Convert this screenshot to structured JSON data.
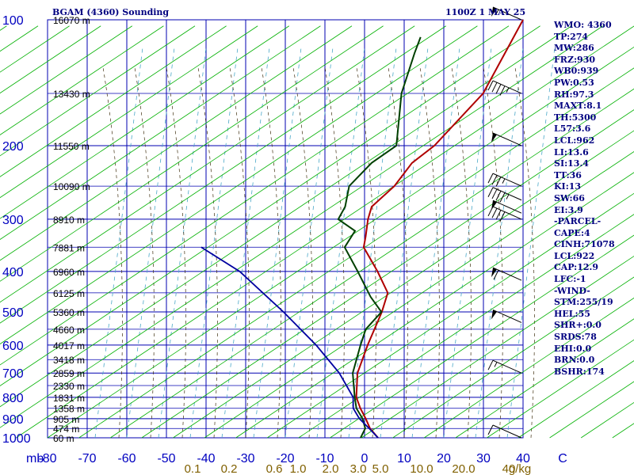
{
  "header": {
    "station": "BGAM (4360) Sounding",
    "time": "1100Z  1 MAY 25"
  },
  "indices": [
    "WMO: 4360",
    "TP:274",
    "MW:286",
    "FRZ:930",
    "WB0:939",
    "PW:0.53",
    "RH:97.3",
    "MAXT:8.1",
    "TH:5300",
    "L57:3.6",
    "LCL:962",
    "LI:13.6",
    "SI:13.4",
    "TT:36",
    "KI:13",
    "SW:66",
    "EI:3.9",
    "-PARCEL-",
    "CAPE:4",
    "CINH:71078",
    "LCL:922",
    "CAP:12.9",
    "LFC:-1",
    "-WIND-",
    "STM:255/19",
    "HEL:55",
    "SHR+:0.0",
    "SRDS:78",
    "EHI:0.0",
    "BRN:0.0",
    "BSHR:174"
  ],
  "chart_data": {
    "type": "line",
    "title": "BGAM (4360) Sounding",
    "xlabel": "",
    "ylabel": "mb",
    "xlim": [
      -80,
      0
    ],
    "ylim": [
      1000,
      100
    ],
    "x_ticks": [
      "-80",
      "-70",
      "-60",
      "-50",
      "-40",
      "-30",
      "-20",
      "-10",
      "0",
      "10",
      "20",
      "30",
      "40",
      "C"
    ],
    "y_ticks": [
      {
        "p": 100,
        "label": "100"
      },
      {
        "p": 200,
        "label": "200"
      },
      {
        "p": 300,
        "label": "300"
      },
      {
        "p": 400,
        "label": "400"
      },
      {
        "p": 500,
        "label": "500"
      },
      {
        "p": 600,
        "label": "600"
      },
      {
        "p": 700,
        "label": "700"
      },
      {
        "p": 800,
        "label": "800"
      },
      {
        "p": 900,
        "label": "900"
      },
      {
        "p": 1000,
        "label": "1000"
      }
    ],
    "y_unit_label": "mb",
    "mixing_ratio_labels": [
      "0.1",
      "0.2",
      "0.6",
      "1.0",
      "2.0",
      "3.0",
      "5.0",
      "10.0",
      "20.0",
      "40"
    ],
    "mixing_ratio_unit": "g/kg",
    "heights": [
      {
        "p": 100,
        "label": "16070 m"
      },
      {
        "p": 150,
        "label": "13430 m"
      },
      {
        "p": 200,
        "label": "11550 m"
      },
      {
        "p": 250,
        "label": "10090 m"
      },
      {
        "p": 300,
        "label": "8910 m"
      },
      {
        "p": 350,
        "label": "7881 m"
      },
      {
        "p": 400,
        "label": "6960 m"
      },
      {
        "p": 450,
        "label": "6125 m"
      },
      {
        "p": 500,
        "label": "5360 m"
      },
      {
        "p": 550,
        "label": "4660 m"
      },
      {
        "p": 600,
        "label": "4017 m"
      },
      {
        "p": 650,
        "label": "3418 m"
      },
      {
        "p": 700,
        "label": "2859 m"
      },
      {
        "p": 750,
        "label": "2330 m"
      },
      {
        "p": 800,
        "label": "1831 m"
      },
      {
        "p": 850,
        "label": "1358 m"
      },
      {
        "p": 900,
        "label": "905 m"
      },
      {
        "p": 950,
        "label": "474 m"
      },
      {
        "p": 1000,
        "label": "60 m"
      }
    ],
    "series": [
      {
        "role": "temperature",
        "color": "#b00000",
        "points": [
          {
            "p": 1000,
            "t": 3.4
          },
          {
            "p": 950,
            "t": -0.8
          },
          {
            "p": 900,
            "t": -4.2
          },
          {
            "p": 850,
            "t": -8.0
          },
          {
            "p": 800,
            "t": -11.6
          },
          {
            "p": 700,
            "t": -17.0
          },
          {
            "p": 600,
            "t": -21.0
          },
          {
            "p": 500,
            "t": -25.2
          },
          {
            "p": 450,
            "t": -28.2
          },
          {
            "p": 400,
            "t": -35.8
          },
          {
            "p": 350,
            "t": -45.0
          },
          {
            "p": 330,
            "t": -47.0
          },
          {
            "p": 300,
            "t": -50.5
          },
          {
            "p": 280,
            "t": -52.5
          },
          {
            "p": 250,
            "t": -51.6
          },
          {
            "p": 220,
            "t": -52.6
          },
          {
            "p": 200,
            "t": -51.0
          },
          {
            "p": 150,
            "t": -51.0
          },
          {
            "p": 100,
            "t": -53.4
          }
        ]
      },
      {
        "role": "dewpoint",
        "color": "#004000",
        "points": [
          {
            "p": 1000,
            "t": -1.0
          },
          {
            "p": 950,
            "t": -2.0
          },
          {
            "p": 900,
            "t": -5.0
          },
          {
            "p": 850,
            "t": -9.0
          },
          {
            "p": 800,
            "t": -12.0
          },
          {
            "p": 700,
            "t": -18.2
          },
          {
            "p": 600,
            "t": -22.8
          },
          {
            "p": 550,
            "t": -25.2
          },
          {
            "p": 500,
            "t": -25.3
          },
          {
            "p": 460,
            "t": -31.6
          },
          {
            "p": 400,
            "t": -40.8
          },
          {
            "p": 350,
            "t": -49.8
          },
          {
            "p": 320,
            "t": -51.0
          },
          {
            "p": 300,
            "t": -58.0
          },
          {
            "p": 280,
            "t": -59.2
          },
          {
            "p": 250,
            "t": -63.0
          },
          {
            "p": 220,
            "t": -62.8
          },
          {
            "p": 200,
            "t": -60.6
          },
          {
            "p": 150,
            "t": -71.6
          },
          {
            "p": 120,
            "t": -77.8
          },
          {
            "p": 110,
            "t": -80.0
          }
        ]
      },
      {
        "role": "parcel",
        "color": "#0000a0",
        "points": [
          {
            "p": 1000,
            "t": 3.4
          },
          {
            "p": 950,
            "t": -1.0
          },
          {
            "p": 900,
            "t": -5.8
          },
          {
            "p": 850,
            "t": -9.8
          },
          {
            "p": 800,
            "t": -12.4
          },
          {
            "p": 700,
            "t": -21.6
          },
          {
            "p": 600,
            "t": -34.0
          },
          {
            "p": 500,
            "t": -50.0
          },
          {
            "p": 400,
            "t": -70.6
          },
          {
            "p": 350,
            "t": -86.0
          }
        ]
      }
    ],
    "wind_barbs": [
      {
        "p": 100,
        "dir": 290,
        "kt": 55
      },
      {
        "p": 150,
        "dir": 280,
        "kt": 45
      },
      {
        "p": 200,
        "dir": 270,
        "kt": 50
      },
      {
        "p": 250,
        "dir": 280,
        "kt": 35
      },
      {
        "p": 270,
        "dir": 285,
        "kt": 45
      },
      {
        "p": 290,
        "dir": 285,
        "kt": 50
      },
      {
        "p": 300,
        "dir": 280,
        "kt": 40
      },
      {
        "p": 420,
        "dir": 285,
        "kt": 60
      },
      {
        "p": 530,
        "dir": 290,
        "kt": 50
      },
      {
        "p": 700,
        "dir": 300,
        "kt": 15
      },
      {
        "p": 1000,
        "dir": 300,
        "kt": 10
      }
    ],
    "grid": true,
    "legend": "none"
  }
}
